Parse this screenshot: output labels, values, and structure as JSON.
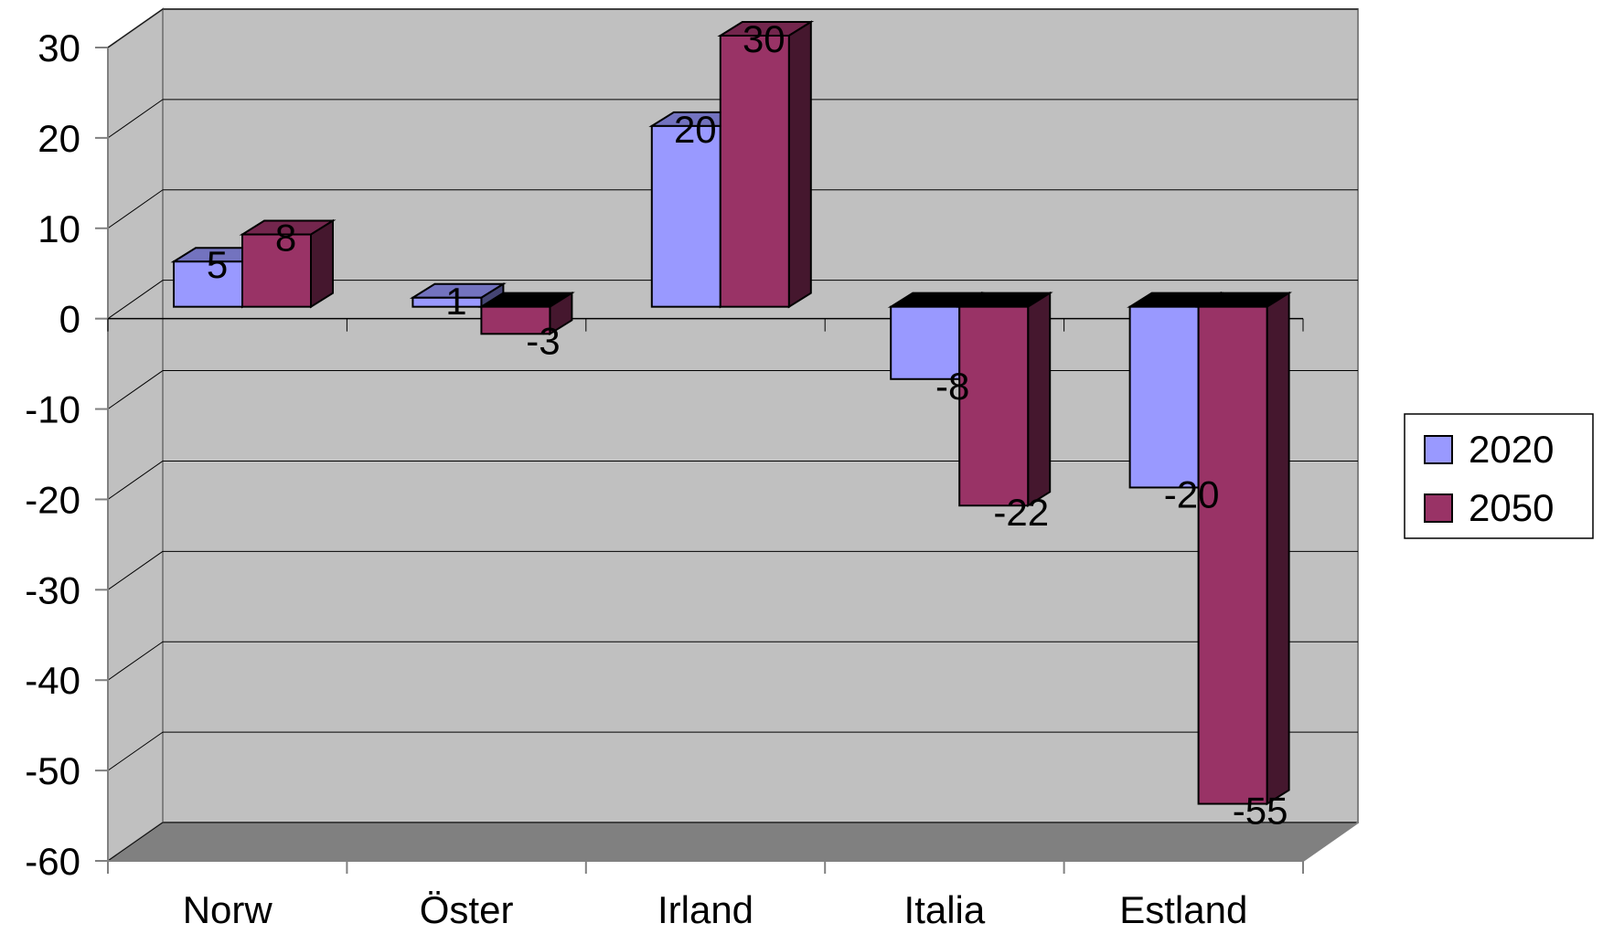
{
  "chart_data": {
    "type": "bar",
    "style": "3d-clustered-column",
    "categories": [
      "Norw",
      "Öster",
      "Irland",
      "Italia",
      "Estland"
    ],
    "series": [
      {
        "name": "2020",
        "values": [
          5,
          1,
          20,
          -8,
          -20
        ],
        "color": "#9999FF"
      },
      {
        "name": "2050",
        "values": [
          8,
          -3,
          30,
          -22,
          -55
        ],
        "color": "#993366"
      }
    ],
    "ylim": [
      -60,
      30
    ],
    "yticks": [
      30,
      20,
      10,
      0,
      -10,
      -20,
      -30,
      -40,
      -50,
      -60
    ],
    "ytick_labels": [
      "30",
      "20",
      "10",
      "0",
      "-10",
      "-20",
      "-30",
      "-40",
      "-50",
      "-60"
    ],
    "data_labels": true,
    "grid": true,
    "legend_position": "right",
    "title": "",
    "xlabel": "",
    "ylabel": "",
    "colors": {
      "plot_wall": "#C0C0C0",
      "plot_floor": "#808080",
      "gridline": "#000000"
    }
  }
}
